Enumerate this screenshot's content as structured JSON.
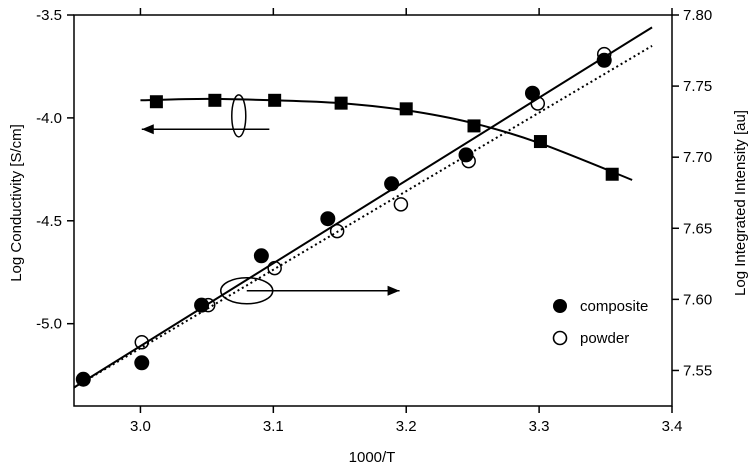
{
  "chart_data": {
    "type": "scatter",
    "xlabel": "1000/T",
    "ylabel_left": "Log Conductivity [S/cm]",
    "ylabel_right": "Log Integrated Intensity [au]",
    "xlim": [
      2.95,
      3.4
    ],
    "ylim_left": [
      -5.4,
      -3.5
    ],
    "ylim_right": [
      7.525,
      7.8
    ],
    "x_ticks": [
      3.0,
      3.1,
      3.2,
      3.3,
      3.4
    ],
    "x_tick_labels": [
      "3.0",
      "3.1",
      "3.2",
      "3.3",
      "3.4"
    ],
    "y_left_ticks": [
      -3.5,
      -4.0,
      -4.5,
      -5.0
    ],
    "y_left_tick_labels": [
      "-3.5",
      "-4.0",
      "-4.5",
      "-5.0"
    ],
    "y_right_ticks": [
      7.8,
      7.75,
      7.7,
      7.65,
      7.6,
      7.55
    ],
    "y_right_tick_labels": [
      "7.80",
      "7.75",
      "7.70",
      "7.65",
      "7.60",
      "7.55"
    ],
    "grid": false,
    "legend_position": "lower-right",
    "series": [
      {
        "name": "composite",
        "axis": "left",
        "marker": "filled-circle",
        "x": [
          2.957,
          3.001,
          3.046,
          3.091,
          3.141,
          3.189,
          3.245,
          3.295,
          3.349
        ],
        "y": [
          -5.27,
          -5.19,
          -4.91,
          -4.67,
          -4.49,
          -4.32,
          -4.18,
          -3.88,
          -3.72
        ]
      },
      {
        "name": "powder",
        "axis": "left",
        "marker": "open-circle",
        "x": [
          3.001,
          3.051,
          3.101,
          3.148,
          3.196,
          3.247,
          3.299,
          3.349
        ],
        "y": [
          -5.09,
          -4.91,
          -4.73,
          -4.55,
          -4.42,
          -4.21,
          -3.93,
          -3.69
        ]
      },
      {
        "axis": "right",
        "marker": "filled-square",
        "x": [
          3.012,
          3.056,
          3.101,
          3.151,
          3.2,
          3.251,
          3.301,
          3.355
        ],
        "y": [
          7.739,
          7.74,
          7.74,
          7.738,
          7.734,
          7.722,
          7.711,
          7.688
        ]
      }
    ],
    "fits": [
      {
        "style": "solid",
        "axis": "left",
        "x": [
          2.95,
          3.385
        ],
        "y": [
          -5.31,
          -3.56
        ]
      },
      {
        "style": "dotted",
        "axis": "left",
        "x": [
          2.95,
          3.385
        ],
        "y": [
          -5.31,
          -3.65
        ]
      },
      {
        "style": "solid",
        "axis": "right",
        "x": [
          3.0,
          3.05,
          3.1,
          3.15,
          3.2,
          3.25,
          3.3,
          3.37
        ],
        "y": [
          7.74,
          7.741,
          7.74,
          7.738,
          7.733,
          7.724,
          7.71,
          7.684
        ]
      }
    ],
    "legend": [
      "composite",
      "powder"
    ]
  }
}
